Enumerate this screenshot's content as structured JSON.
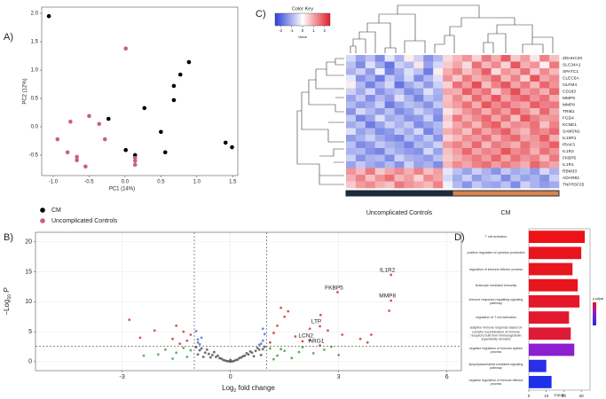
{
  "chart_data": [
    {
      "type": "scatter",
      "panel": "A)",
      "xlabel": "PC1 (14%)",
      "ylabel": "PC2 (12%)",
      "xlim": [
        -1.16,
        1.57
      ],
      "ylim": [
        -0.86,
        2.11
      ],
      "xticks": [
        {
          "value": -1,
          "label": "-1.0"
        },
        -0.5,
        {
          "value": 0,
          "label": "0.0"
        },
        0.5,
        {
          "value": 1,
          "label": "1.0"
        },
        1.5
      ],
      "yticks": [
        -0.5,
        {
          "value": 0,
          "label": "0.0"
        },
        0.5,
        {
          "value": 1,
          "label": "1.0"
        },
        1.5,
        {
          "value": 2,
          "label": "2.0"
        }
      ],
      "legend": "bottom-left",
      "series": [
        {
          "name": "CM",
          "color": "#000000",
          "x": [
            -1.06,
            0.89,
            0.77,
            0.68,
            0.68,
            0.27,
            -0.23,
            0.5,
            0.01,
            0.14,
            0.56,
            1.4,
            1.49
          ],
          "values": [
            1.95,
            1.14,
            0.92,
            0.72,
            0.47,
            0.33,
            0.14,
            -0.09,
            -0.41,
            -0.5,
            -0.45,
            -0.28,
            -0.36
          ]
        },
        {
          "name": "Uncomplicated Controls",
          "color": "#c9607a",
          "x": [
            0.01,
            -0.5,
            -0.76,
            -0.28,
            -0.36,
            -0.94,
            -0.8,
            -0.67,
            -0.67,
            -0.55,
            0.14,
            0.14,
            0.14
          ],
          "values": [
            1.38,
            0.19,
            0.09,
            -0.22,
            0.05,
            -0.22,
            -0.45,
            -0.53,
            -0.59,
            -0.7,
            -0.55,
            -0.6,
            -0.67
          ]
        }
      ]
    },
    {
      "type": "scatter",
      "panel": "B)",
      "xlabel": [
        "Log",
        "2",
        " fold change"
      ],
      "ylabel": [
        "−Log",
        "10",
        " P"
      ],
      "xlim": [
        -5.4,
        6.4
      ],
      "ylim": [
        -1.5,
        21.6
      ],
      "xticks": [
        -3,
        0,
        3,
        6
      ],
      "yticks": [
        0,
        5,
        10,
        15,
        20
      ],
      "grid": true,
      "vlines": [
        -1,
        1
      ],
      "hline": 2.6,
      "series": [
        {
          "color": "#4a4a4a",
          "x": [
            -0.95,
            -0.85,
            -0.8,
            -0.7,
            -0.65,
            -0.6,
            -0.5,
            -0.45,
            -0.4,
            -0.35,
            -0.3,
            -0.25,
            -0.2,
            -0.15,
            -0.1,
            -0.05,
            0,
            0.05,
            0.1,
            0.15,
            0.2,
            0.25,
            0.3,
            0.35,
            0.4,
            0.45,
            0.5,
            0.55,
            0.6,
            0.7,
            0.75,
            0.8,
            0.9,
            0.95,
            -0.9,
            -0.55,
            0.65,
            0.85,
            -0.75,
            0.0
          ],
          "values": [
            2.4,
            1.9,
            2.2,
            1.5,
            2.0,
            1.3,
            1.1,
            1.6,
            0.8,
            1.0,
            0.6,
            0.5,
            0.3,
            0.2,
            0.1,
            0.05,
            0.02,
            0.04,
            0.12,
            0.25,
            0.35,
            0.6,
            0.7,
            0.9,
            1.0,
            1.4,
            1.2,
            1.7,
            1.5,
            1.8,
            2.3,
            2.0,
            2.1,
            2.5,
            1.2,
            0.7,
            0.9,
            1.1,
            0.8,
            0.3
          ]
        },
        {
          "color": "#3d9a3d",
          "x": [
            -2.0,
            -1.8,
            -1.5,
            -1.3,
            -1.2,
            -1.1,
            -1.6,
            -2.4,
            1.1,
            1.3,
            1.5,
            1.7,
            2.0,
            2.3,
            2.6,
            3.0,
            1.2,
            1.9,
            2.8,
            1.4
          ],
          "values": [
            1.2,
            2.0,
            1.5,
            2.3,
            0.8,
            1.9,
            0.5,
            1.0,
            2.2,
            1.0,
            1.8,
            0.6,
            2.4,
            1.4,
            2.0,
            1.1,
            0.4,
            1.6,
            2.5,
            2.1
          ]
        },
        {
          "color": "#4a6fd0",
          "x": [
            -0.9,
            -0.8,
            -0.95,
            -0.85,
            0.9,
            0.95,
            0.85,
            0.8,
            0.9,
            -0.9
          ],
          "values": [
            3.2,
            4.0,
            5.1,
            2.9,
            3.5,
            4.6,
            3.0,
            2.8,
            5.5,
            3.7
          ]
        },
        {
          "color": "#d12a2a",
          "x": [
            -2.8,
            -2.1,
            -1.5,
            -1.2,
            -1.1,
            -1.4,
            -1.3,
            -1.6,
            -2.5,
            1.1,
            1.3,
            1.5,
            1.2,
            1.8,
            2.0,
            2.2,
            2.5,
            1.6,
            3.1,
            3.6,
            3.9,
            3.8,
            4.4,
            2.7,
            1.4,
            4.45,
            4.45,
            2.97,
            2.48,
            2.19,
            2.48
          ],
          "values": [
            7.0,
            5.2,
            6.0,
            3.5,
            4.5,
            3.0,
            5.0,
            3.8,
            4.0,
            3.2,
            6.0,
            7.5,
            4.8,
            4.2,
            3.4,
            5.5,
            7.8,
            8.4,
            4.5,
            3.8,
            4.5,
            3.2,
            8.5,
            5.2,
            9.0,
            14.5,
            10.2,
            11.6,
            5.9,
            3.6,
            2.7
          ]
        }
      ],
      "annotations": [
        {
          "text": "IL1R2",
          "x": 4.45,
          "y": 14.5
        },
        {
          "text": "MMP8",
          "x": 4.45,
          "y": 10.2
        },
        {
          "text": "FKBP5",
          "x": 2.97,
          "y": 11.6
        },
        {
          "text": "LTP",
          "x": 2.48,
          "y": 5.9
        },
        {
          "text": "LCN2",
          "x": 2.19,
          "y": 3.6
        },
        {
          "text": "ARG1",
          "x": 2.48,
          "y": 2.7
        }
      ]
    },
    {
      "type": "heatmap",
      "panel": "C)",
      "rows": [
        "ZDHHC20",
        "SLC34A1",
        "SPATC1",
        "CLEC5A",
        "OLFM4",
        "CD163",
        "MMP9",
        "MMP8",
        "TRIB1",
        "FGD4",
        "KCNE1",
        "SAMSN1",
        "IL18R1",
        "IRAK3",
        "IL1R2",
        "FKBP5",
        "IL1R1",
        "RBM33",
        "ADARB1",
        "TNFRSF25"
      ],
      "values": [
        [
          -0.5,
          -1.2,
          -0.8,
          -1.5,
          -0.3,
          -1.0,
          0.2,
          -0.6,
          -1.4,
          -0.9,
          0.4,
          0.8,
          1.2,
          0.5,
          1.5,
          0.9,
          1.8,
          0.6,
          1.1,
          0.3,
          1.4,
          0.7
        ],
        [
          -0.8,
          -1.5,
          -0.4,
          -1.1,
          -1.8,
          -0.6,
          -0.9,
          0.3,
          -1.2,
          -0.5,
          0.6,
          1.0,
          0.4,
          1.6,
          0.8,
          1.3,
          0.5,
          1.9,
          0.9,
          1.2,
          0.2,
          1.5
        ],
        [
          -1.0,
          -0.6,
          -1.3,
          -0.2,
          -1.6,
          -1.1,
          -0.4,
          -0.8,
          -1.7,
          0.2,
          0.9,
          1.4,
          0.7,
          1.1,
          1.8,
          0.4,
          1.2,
          0.9,
          1.6,
          0.6,
          1.3,
          0.8
        ],
        [
          -0.3,
          -1.4,
          -1.0,
          -1.7,
          -0.7,
          -1.2,
          -0.5,
          -1.5,
          -0.9,
          -0.4,
          1.2,
          0.6,
          1.5,
          0.9,
          1.2,
          1.7,
          0.8,
          1.4,
          0.5,
          1.9,
          1.0,
          1.3
        ],
        [
          0.2,
          -0.9,
          -1.6,
          -1.0,
          -0.5,
          -1.8,
          -1.1,
          -0.7,
          -1.3,
          -0.6,
          0.5,
          1.6,
          1.1,
          2.0,
          0.7,
          1.4,
          1.9,
          1.0,
          1.5,
          0.8,
          1.7,
          1.2
        ],
        [
          -0.6,
          -1.1,
          -0.5,
          -1.4,
          -1.0,
          -0.8,
          -1.5,
          -1.2,
          -0.4,
          -1.0,
          1.0,
          0.9,
          1.8,
          1.2,
          1.6,
          0.6,
          1.3,
          2.0,
          1.1,
          1.4,
          0.9,
          1.7
        ],
        [
          -1.2,
          -0.7,
          -1.5,
          -0.9,
          -1.3,
          -0.4,
          -1.0,
          -1.6,
          -0.8,
          -1.1,
          0.7,
          1.3,
          0.8,
          1.7,
          1.1,
          1.9,
          1.0,
          1.5,
          1.8,
          1.2,
          1.6,
          0.9
        ],
        [
          -0.9,
          -1.3,
          -1.1,
          -0.6,
          -1.7,
          -1.2,
          -0.8,
          -1.0,
          -1.4,
          -0.7,
          0.8,
          1.1,
          1.6,
          0.9,
          1.9,
          1.3,
          1.7,
          1.2,
          1.0,
          1.8,
          1.4,
          1.5
        ],
        [
          -1.4,
          -0.5,
          -0.9,
          -1.3,
          -0.8,
          -1.5,
          -1.2,
          -0.6,
          -1.0,
          -1.3,
          0.3,
          0.7,
          1.2,
          1.5,
          0.9,
          1.6,
          1.1,
          1.8,
          1.3,
          0.8,
          1.7,
          1.0
        ],
        [
          -0.7,
          -1.6,
          -1.2,
          -0.4,
          -1.1,
          -0.9,
          -1.4,
          -1.3,
          -0.6,
          -1.5,
          0.6,
          1.5,
          0.9,
          1.3,
          1.7,
          1.0,
          1.6,
          0.7,
          1.9,
          1.4,
          1.1,
          1.2
        ],
        [
          -1.1,
          -0.8,
          -1.7,
          -1.2,
          -0.6,
          -1.0,
          -0.7,
          -1.5,
          -1.2,
          -0.9,
          0.4,
          1.0,
          1.4,
          0.8,
          1.5,
          1.8,
          0.9,
          1.3,
          1.2,
          1.6,
          0.7,
          1.4
        ],
        [
          -0.4,
          -1.2,
          -0.9,
          -1.5,
          -1.3,
          -0.7,
          -1.1,
          -0.5,
          -1.6,
          -1.0,
          0.9,
          1.2,
          0.7,
          1.6,
          1.0,
          1.4,
          1.8,
          1.1,
          0.8,
          1.5,
          1.3,
          1.7
        ],
        [
          -1.3,
          -1.0,
          -0.6,
          -1.1,
          -1.4,
          -1.6,
          -0.8,
          -1.2,
          -0.7,
          -1.4,
          0.5,
          0.8,
          1.3,
          1.1,
          1.6,
          0.9,
          1.4,
          1.7,
          1.0,
          1.2,
          1.8,
          0.9
        ],
        [
          -0.8,
          -1.5,
          -1.3,
          -0.7,
          -1.0,
          -1.2,
          -1.6,
          -0.9,
          -1.1,
          -0.6,
          1.1,
          1.4,
          1.0,
          1.7,
          0.8,
          1.5,
          1.2,
          0.9,
          1.6,
          1.1,
          1.3,
          1.8
        ],
        [
          -1.0,
          -0.9,
          -1.4,
          -1.6,
          -0.8,
          -1.1,
          -1.3,
          -1.4,
          -0.5,
          -1.2,
          0.7,
          1.1,
          1.7,
          1.0,
          1.4,
          1.2,
          1.9,
          1.3,
          1.5,
          0.9,
          1.6,
          1.2
        ],
        [
          -0.6,
          -1.4,
          -1.0,
          -0.9,
          -1.5,
          -0.6,
          -1.0,
          -1.1,
          -1.3,
          -0.8,
          0.6,
          0.9,
          1.2,
          1.5,
          1.1,
          1.7,
          1.0,
          1.6,
          1.2,
          1.4,
          0.8,
          1.5
        ],
        [
          -1.2,
          -0.7,
          -1.1,
          -1.3,
          -0.9,
          -1.4,
          -0.6,
          -1.2,
          -1.0,
          -1.5,
          0.8,
          1.3,
          1.0,
          1.4,
          1.6,
          1.1,
          1.5,
          1.2,
          0.9,
          1.7,
          1.3,
          1.0
        ],
        [
          1.2,
          0.8,
          1.5,
          0.6,
          1.0,
          1.3,
          0.9,
          1.4,
          0.7,
          1.1,
          -0.3,
          -0.8,
          -1.2,
          -0.6,
          -1.0,
          -1.4,
          -0.7,
          -1.1,
          -0.9,
          -1.3,
          -0.5,
          -1.0
        ],
        [
          0.9,
          1.4,
          0.7,
          1.2,
          1.6,
          0.8,
          1.1,
          0.5,
          1.3,
          1.0,
          -0.5,
          -1.1,
          -0.6,
          -1.3,
          -0.9,
          -0.7,
          -1.5,
          -0.8,
          -1.2,
          -1.0,
          -1.4,
          -0.6
        ],
        [
          0.6,
          1.1,
          1.3,
          0.9,
          0.7,
          1.5,
          1.2,
          1.0,
          0.8,
          1.4,
          -0.2,
          -0.9,
          -1.4,
          -0.7,
          -1.1,
          -1.2,
          -0.8,
          -1.5,
          -0.6,
          -1.0,
          -1.3,
          -1.1
        ]
      ],
      "groups": [
        {
          "name": "Uncomplicated Controls",
          "color": "#1c2b3a",
          "size": 11
        },
        {
          "name": "CM",
          "color": "#d9834a",
          "size": 11
        }
      ],
      "colorbar": {
        "title": "Color Key",
        "label": "Value",
        "lim": [
          -2.5,
          2.5
        ],
        "ticks": [
          -2,
          -1,
          0,
          1,
          2
        ],
        "colors": [
          "#2b3fd6",
          "#ffffff",
          "#e0202a"
        ]
      }
    },
    {
      "type": "barh",
      "panel": "D)",
      "xlabel": "Count",
      "xlim": [
        0,
        35
      ],
      "xticks": [
        0,
        10,
        20,
        30
      ],
      "categories": [
        "T cell activation",
        "positive regulation of cytokine production",
        "regulation of immune effector process",
        "leukocyte mediated immunity",
        "immune response-regulating signaling pathway",
        "regulation of T cell activation",
        "adaptive immune response based on somatic recombination of immune receptors built from immunoglobulin superfamily domains",
        "negative regulation of immune system process",
        "lipopolysaccharide-mediated signaling pathway",
        "negative regulation of immune effector process"
      ],
      "values": [
        32,
        30,
        25,
        28,
        29,
        23,
        24,
        26,
        10,
        13
      ],
      "colors": [
        "#ec1218",
        "#ea1420",
        "#e8161f",
        "#e7161e",
        "#e6172a",
        "#e3182e",
        "#df1a34",
        "#8c1fd0",
        "#2a2ee8",
        "#1e30ea"
      ],
      "colorbar": {
        "title": "p.adjust",
        "colors": [
          "#e8141c",
          "#8b1bd0",
          "#1a2ee8"
        ]
      }
    }
  ]
}
